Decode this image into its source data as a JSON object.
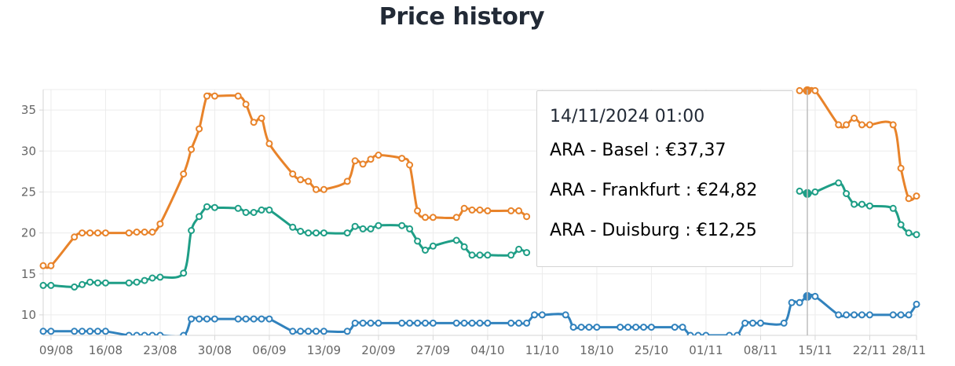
{
  "title": "Price history",
  "colors": {
    "basel": "#e8832a",
    "frankfurt": "#1e9e86",
    "duisburg": "#3182bd",
    "grid": "#ececec",
    "axis": "#d6d6d6"
  },
  "tooltip": {
    "time": "14/11/2024 01:00",
    "rows": [
      {
        "label": "ARA - Basel : €37,37"
      },
      {
        "label": "ARA - Frankfurt : €24,82"
      },
      {
        "label": "ARA - Duisburg : €12,25"
      }
    ]
  },
  "chart_data": {
    "type": "line",
    "title": "Price history",
    "xlabel": "",
    "ylabel": "",
    "ylim": [
      7.5,
      37.5
    ],
    "xlim": [
      "2024-08-08",
      "2024-11-28"
    ],
    "yticks": [
      10,
      15,
      20,
      25,
      30,
      35
    ],
    "xticks": [
      "09/08",
      "16/08",
      "23/08",
      "30/08",
      "06/09",
      "13/09",
      "20/09",
      "27/09",
      "04/10",
      "11/10",
      "18/10",
      "25/10",
      "01/11",
      "08/11",
      "15/11",
      "22/11",
      "28/11"
    ],
    "grid": true,
    "hover_date": "2024-11-14",
    "series": [
      {
        "name": "ARA - Basel",
        "color": "#e8832a",
        "x": [
          "2024-08-08",
          "2024-08-09",
          "2024-08-12",
          "2024-08-13",
          "2024-08-14",
          "2024-08-15",
          "2024-08-16",
          "2024-08-19",
          "2024-08-20",
          "2024-08-21",
          "2024-08-22",
          "2024-08-23",
          "2024-08-26",
          "2024-08-27",
          "2024-08-28",
          "2024-08-29",
          "2024-08-30",
          "2024-09-02",
          "2024-09-03",
          "2024-09-04",
          "2024-09-05",
          "2024-09-06",
          "2024-09-09",
          "2024-09-10",
          "2024-09-11",
          "2024-09-12",
          "2024-09-13",
          "2024-09-16",
          "2024-09-17",
          "2024-09-18",
          "2024-09-19",
          "2024-09-20",
          "2024-09-23",
          "2024-09-24",
          "2024-09-25",
          "2024-09-26",
          "2024-09-27",
          "2024-09-30",
          "2024-10-01",
          "2024-10-02",
          "2024-10-03",
          "2024-10-04",
          "2024-10-07",
          "2024-10-08",
          "2024-10-09",
          "2024-11-13",
          "2024-11-14",
          "2024-11-15",
          "2024-11-18",
          "2024-11-19",
          "2024-11-20",
          "2024-11-21",
          "2024-11-22",
          "2024-11-25",
          "2024-11-26",
          "2024-11-27",
          "2024-11-28"
        ],
        "y": [
          16.0,
          16.0,
          19.5,
          20.0,
          20.0,
          20.0,
          20.0,
          20.0,
          20.1,
          20.1,
          20.1,
          21.1,
          27.2,
          30.2,
          32.7,
          36.7,
          36.7,
          36.7,
          35.7,
          33.5,
          34.0,
          30.9,
          27.2,
          26.5,
          26.3,
          25.3,
          25.3,
          26.3,
          28.8,
          28.4,
          29.0,
          29.5,
          29.1,
          28.3,
          22.7,
          21.9,
          21.9,
          21.9,
          23.0,
          22.8,
          22.8,
          22.7,
          22.7,
          22.7,
          22.0,
          37.37,
          37.37,
          37.37,
          33.2,
          33.2,
          34.0,
          33.2,
          33.2,
          33.2,
          27.9,
          24.2,
          24.5
        ]
      },
      {
        "name": "ARA - Frankfurt",
        "color": "#1e9e86",
        "x": [
          "2024-08-08",
          "2024-08-09",
          "2024-08-12",
          "2024-08-13",
          "2024-08-14",
          "2024-08-15",
          "2024-08-16",
          "2024-08-19",
          "2024-08-20",
          "2024-08-21",
          "2024-08-22",
          "2024-08-23",
          "2024-08-26",
          "2024-08-27",
          "2024-08-28",
          "2024-08-29",
          "2024-08-30",
          "2024-09-02",
          "2024-09-03",
          "2024-09-04",
          "2024-09-05",
          "2024-09-06",
          "2024-09-09",
          "2024-09-10",
          "2024-09-11",
          "2024-09-12",
          "2024-09-13",
          "2024-09-16",
          "2024-09-17",
          "2024-09-18",
          "2024-09-19",
          "2024-09-20",
          "2024-09-23",
          "2024-09-24",
          "2024-09-25",
          "2024-09-26",
          "2024-09-27",
          "2024-09-30",
          "2024-10-01",
          "2024-10-02",
          "2024-10-03",
          "2024-10-04",
          "2024-10-07",
          "2024-10-08",
          "2024-10-09",
          "2024-11-13",
          "2024-11-14",
          "2024-11-15",
          "2024-11-18",
          "2024-11-19",
          "2024-11-20",
          "2024-11-21",
          "2024-11-22",
          "2024-11-25",
          "2024-11-26",
          "2024-11-27",
          "2024-11-28"
        ],
        "y": [
          13.6,
          13.6,
          13.4,
          13.7,
          14.0,
          13.9,
          13.9,
          13.9,
          14.0,
          14.2,
          14.5,
          14.6,
          15.1,
          20.3,
          22.0,
          23.2,
          23.1,
          23.0,
          22.5,
          22.5,
          22.8,
          22.8,
          20.7,
          20.2,
          20.0,
          20.0,
          20.0,
          20.0,
          20.8,
          20.5,
          20.5,
          20.9,
          20.9,
          20.5,
          19.0,
          17.9,
          18.4,
          19.1,
          18.3,
          17.3,
          17.3,
          17.3,
          17.3,
          18.0,
          17.6,
          25.1,
          24.82,
          25.0,
          26.1,
          24.8,
          23.5,
          23.5,
          23.3,
          23.0,
          21.0,
          20.0,
          19.8
        ]
      },
      {
        "name": "ARA - Duisburg",
        "color": "#3182bd",
        "x": [
          "2024-08-08",
          "2024-08-09",
          "2024-08-12",
          "2024-08-13",
          "2024-08-14",
          "2024-08-15",
          "2024-08-16",
          "2024-08-19",
          "2024-08-20",
          "2024-08-21",
          "2024-08-22",
          "2024-08-23",
          "2024-08-26",
          "2024-08-27",
          "2024-08-28",
          "2024-08-29",
          "2024-08-30",
          "2024-09-02",
          "2024-09-03",
          "2024-09-04",
          "2024-09-05",
          "2024-09-06",
          "2024-09-09",
          "2024-09-10",
          "2024-09-11",
          "2024-09-12",
          "2024-09-13",
          "2024-09-16",
          "2024-09-17",
          "2024-09-18",
          "2024-09-19",
          "2024-09-20",
          "2024-09-23",
          "2024-09-24",
          "2024-09-25",
          "2024-09-26",
          "2024-09-27",
          "2024-09-30",
          "2024-10-01",
          "2024-10-02",
          "2024-10-03",
          "2024-10-04",
          "2024-10-07",
          "2024-10-08",
          "2024-10-09",
          "2024-10-10",
          "2024-10-11",
          "2024-10-14",
          "2024-10-15",
          "2024-10-16",
          "2024-10-17",
          "2024-10-18",
          "2024-10-21",
          "2024-10-22",
          "2024-10-23",
          "2024-10-24",
          "2024-10-25",
          "2024-10-28",
          "2024-10-29",
          "2024-10-30",
          "2024-10-31",
          "2024-11-01",
          "2024-11-04",
          "2024-11-05",
          "2024-11-06",
          "2024-11-07",
          "2024-11-08",
          "2024-11-11",
          "2024-11-12",
          "2024-11-13",
          "2024-11-14",
          "2024-11-15",
          "2024-11-18",
          "2024-11-19",
          "2024-11-20",
          "2024-11-21",
          "2024-11-22",
          "2024-11-25",
          "2024-11-26",
          "2024-11-27",
          "2024-11-28"
        ],
        "y": [
          8.0,
          8.0,
          8.0,
          8.0,
          8.0,
          8.0,
          8.0,
          7.5,
          7.5,
          7.5,
          7.5,
          7.5,
          7.5,
          9.5,
          9.5,
          9.5,
          9.5,
          9.5,
          9.5,
          9.5,
          9.5,
          9.5,
          8.0,
          8.0,
          8.0,
          8.0,
          8.0,
          8.0,
          9.0,
          9.0,
          9.0,
          9.0,
          9.0,
          9.0,
          9.0,
          9.0,
          9.0,
          9.0,
          9.0,
          9.0,
          9.0,
          9.0,
          9.0,
          9.0,
          9.0,
          10.0,
          10.0,
          10.0,
          8.5,
          8.5,
          8.5,
          8.5,
          8.5,
          8.5,
          8.5,
          8.5,
          8.5,
          8.5,
          8.5,
          7.5,
          7.5,
          7.5,
          7.5,
          7.5,
          9.0,
          9.0,
          9.0,
          9.0,
          11.5,
          11.5,
          12.25,
          12.25,
          10.0,
          10.0,
          10.0,
          10.0,
          10.0,
          10.0,
          10.0,
          10.0,
          11.3
        ]
      }
    ]
  }
}
